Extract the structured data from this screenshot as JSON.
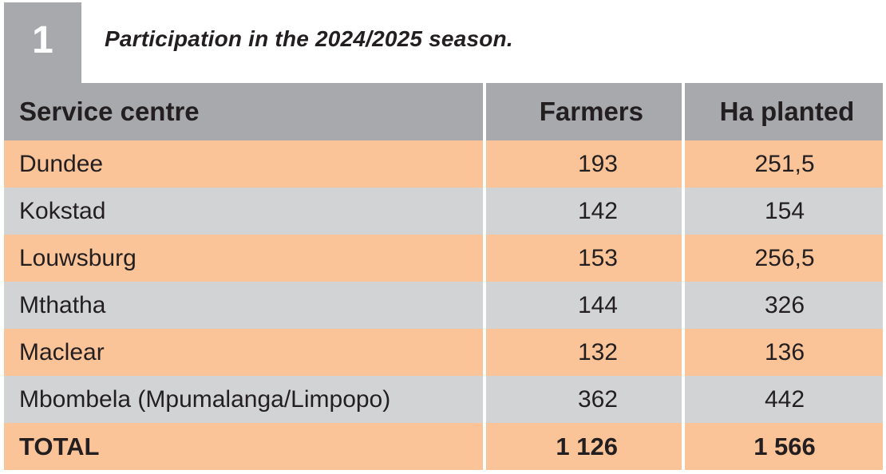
{
  "badge": {
    "number": "1"
  },
  "caption": "Participation in the 2024/2025 season.",
  "table": {
    "headers": {
      "service_centre": "Service centre",
      "farmers": "Farmers",
      "ha_planted": "Ha planted"
    },
    "rows": [
      {
        "centre": "Dundee",
        "farmers": "193",
        "ha": "251,5"
      },
      {
        "centre": "Kokstad",
        "farmers": "142",
        "ha": "154"
      },
      {
        "centre": "Louwsburg",
        "farmers": "153",
        "ha": "256,5"
      },
      {
        "centre": "Mthatha",
        "farmers": "144",
        "ha": "326"
      },
      {
        "centre": "Maclear",
        "farmers": "132",
        "ha": "136"
      },
      {
        "centre": "Mbombela (Mpumalanga/Limpopo)",
        "farmers": "362",
        "ha": "442"
      }
    ],
    "total": {
      "label": "TOTAL",
      "farmers": "1 126",
      "ha": "1 566"
    }
  },
  "colors": {
    "header_grey": "#a7a9ac",
    "row_orange": "#fac398",
    "row_grey": "#d1d3d4"
  }
}
